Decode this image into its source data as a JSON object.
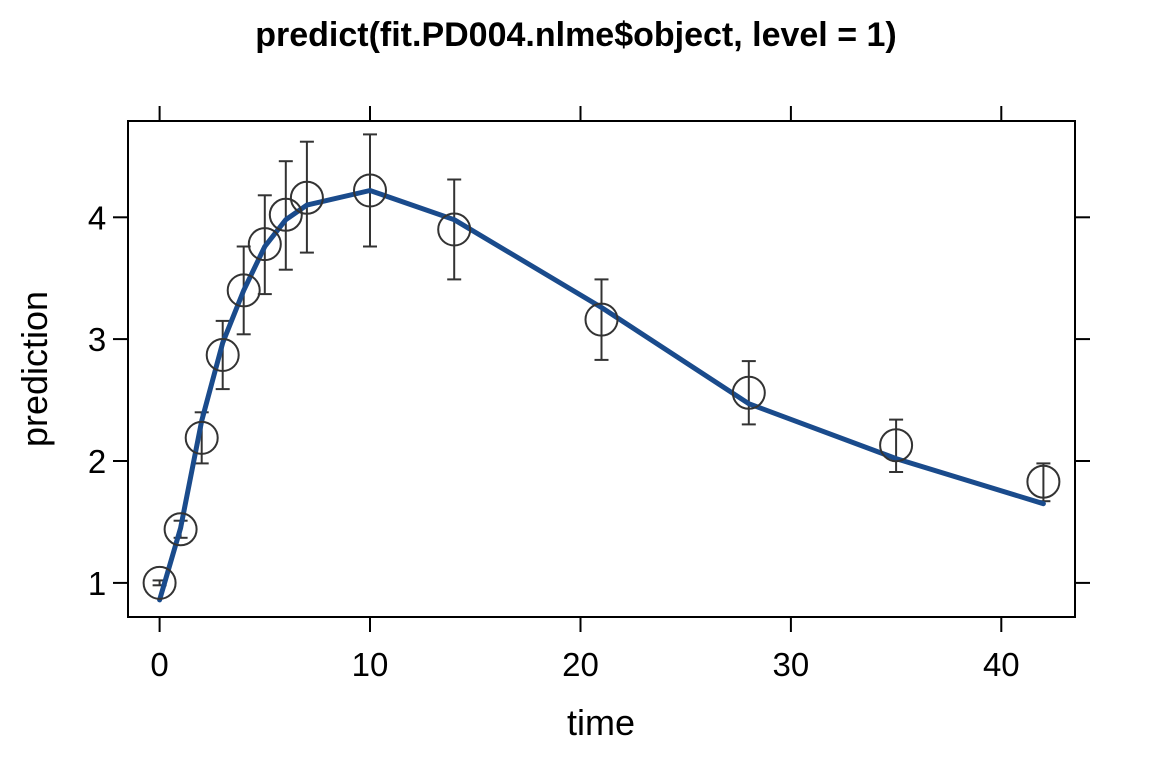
{
  "chart_data": {
    "type": "line",
    "title": "predict(fit.PD004.nlme$object, level = 1)",
    "xlabel": "time",
    "ylabel": "prediction",
    "xlim": [
      -1.5,
      43.5
    ],
    "ylim": [
      0.72,
      4.79
    ],
    "xticks": [
      0,
      10,
      20,
      30,
      40
    ],
    "yticks": [
      1,
      2,
      3,
      4
    ],
    "grid": false,
    "series": [
      {
        "kind": "points-with-error-bars",
        "marker": "open-circle",
        "color": "#333333",
        "x": [
          0,
          1,
          2,
          3,
          4,
          5,
          6,
          7,
          10,
          14,
          21,
          28,
          35,
          42
        ],
        "y": [
          1.0,
          1.44,
          2.19,
          2.87,
          3.4,
          3.78,
          4.02,
          4.16,
          4.22,
          3.9,
          3.16,
          2.56,
          2.13,
          1.83
        ],
        "lower": [
          0.98,
          1.37,
          1.98,
          2.59,
          3.04,
          3.37,
          3.57,
          3.71,
          3.76,
          3.49,
          2.83,
          2.3,
          1.91,
          1.67
        ],
        "upper": [
          1.02,
          1.51,
          2.4,
          3.15,
          3.76,
          4.18,
          4.46,
          4.62,
          4.68,
          4.31,
          3.49,
          2.82,
          2.34,
          1.98
        ]
      },
      {
        "kind": "line",
        "color": "#1a4b8c",
        "x": [
          0,
          1,
          2,
          3,
          4,
          5,
          6,
          7,
          10,
          14,
          21,
          28,
          35,
          42
        ],
        "y": [
          0.86,
          1.45,
          2.33,
          2.97,
          3.4,
          3.76,
          3.98,
          4.1,
          4.22,
          3.98,
          3.26,
          2.47,
          2.02,
          1.65
        ]
      }
    ]
  }
}
